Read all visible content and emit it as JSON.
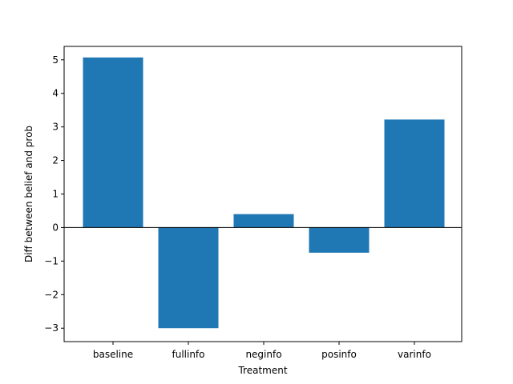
{
  "chart_data": {
    "type": "bar",
    "categories": [
      "baseline",
      "fullinfo",
      "neginfo",
      "posinfo",
      "varinfo"
    ],
    "values": [
      5.07,
      -3.0,
      0.4,
      -0.75,
      3.22
    ],
    "xlabel": "Treatment",
    "ylabel": "Diff between belief and prob",
    "ylim": [
      -3.4,
      5.4
    ],
    "yticks": [
      -3,
      -2,
      -1,
      0,
      1,
      2,
      3,
      4,
      5
    ],
    "ytick_labels": [
      "−3",
      "−2",
      "−1",
      "0",
      "1",
      "2",
      "3",
      "4",
      "5"
    ],
    "zero_line": true,
    "grid": false,
    "bar_color": "#1f77b4"
  }
}
